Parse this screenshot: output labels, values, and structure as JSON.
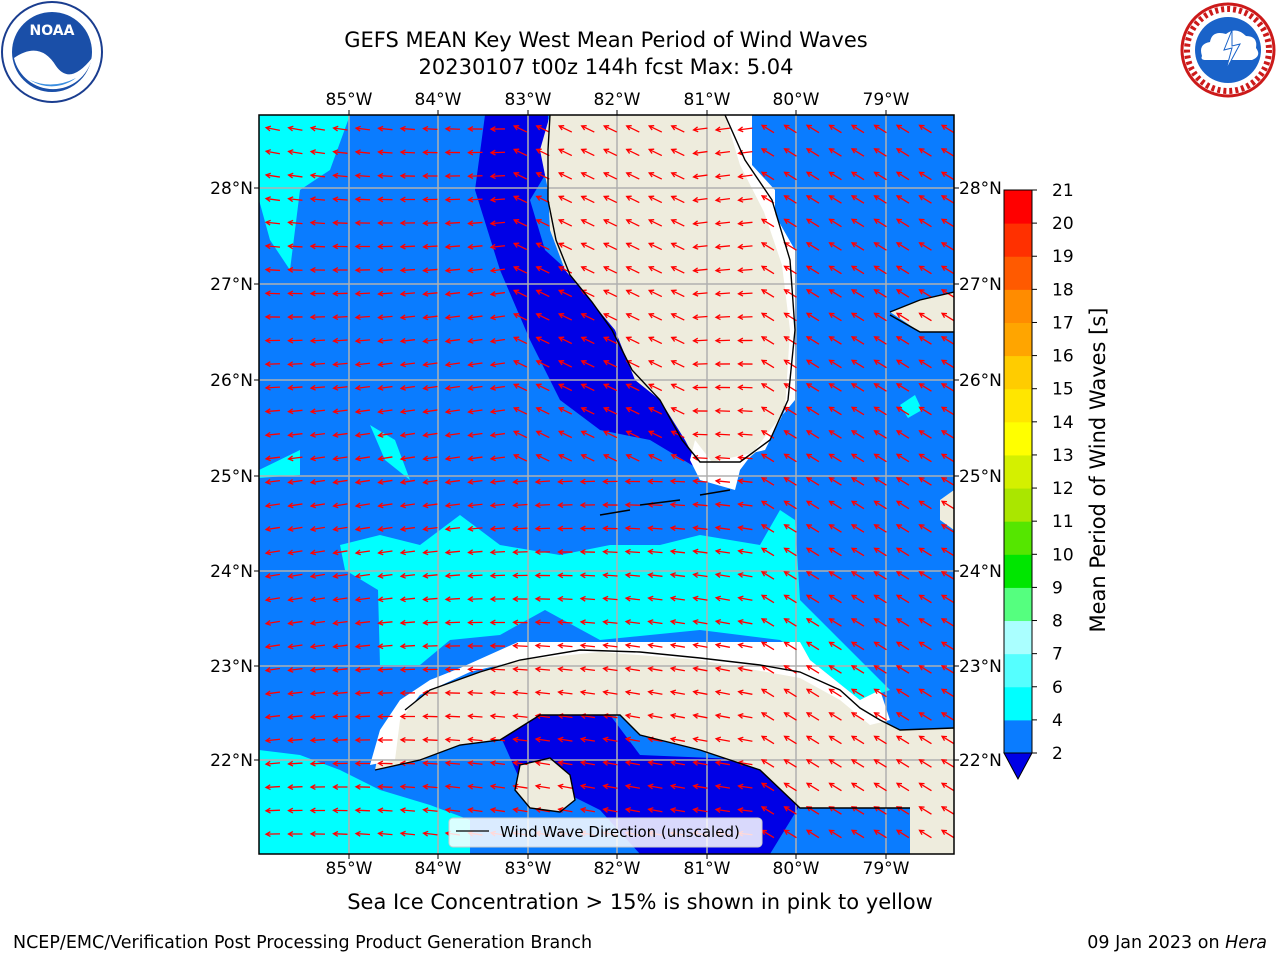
{
  "title": {
    "line1": "GEFS MEAN Key West Mean Period of Wind Waves",
    "line2": "20230107 t00z 144h fcst   Max: 5.04"
  },
  "map": {
    "longitude_labels": [
      "85°W",
      "84°W",
      "83°W",
      "82°W",
      "81°W",
      "80°W",
      "79°W"
    ],
    "latitude_labels": [
      "28°N",
      "27°N",
      "26°N",
      "25°N",
      "24°N",
      "23°N",
      "22°N"
    ],
    "legend_label": "Wind Wave Direction (unscaled)",
    "colors": {
      "land": "#eeecdd",
      "period_2_4": "#0a7cff",
      "below_2": "#0000e6",
      "period_4_6": "#00ffff",
      "arrows": "#ff0000",
      "grid": "#b0b0b0"
    }
  },
  "colorbar": {
    "label": "Mean Period of Wind Waves [s]",
    "ticks": [
      "2",
      "4",
      "6",
      "7",
      "8",
      "9",
      "10",
      "11",
      "12",
      "13",
      "14",
      "15",
      "16",
      "17",
      "18",
      "19",
      "20",
      "21"
    ],
    "level_colors": [
      "#0a7cff",
      "#00ffff",
      "#55ffff",
      "#aaffff",
      "#55ff7f",
      "#00e600",
      "#55e600",
      "#aae600",
      "#d4f000",
      "#ffff00",
      "#ffe600",
      "#ffcc00",
      "#ffa500",
      "#ff8c00",
      "#ff5a00",
      "#ff3000",
      "#ff0000"
    ],
    "extend_color": "#0000e6"
  },
  "footer": {
    "sea_ice_note": "Sea Ice Concentration > 15% is shown in pink to yellow",
    "branch": "NCEP/EMC/Verification Post Processing Product Generation Branch",
    "date": "09 Jan 2023 on",
    "machine": "Hera"
  },
  "logos": {
    "left_icon": "noaa-logo",
    "left_text": "NOAA",
    "right_icon": "national-weather-service-logo",
    "right_text": "NATIONAL WEATHER SERVICE"
  }
}
